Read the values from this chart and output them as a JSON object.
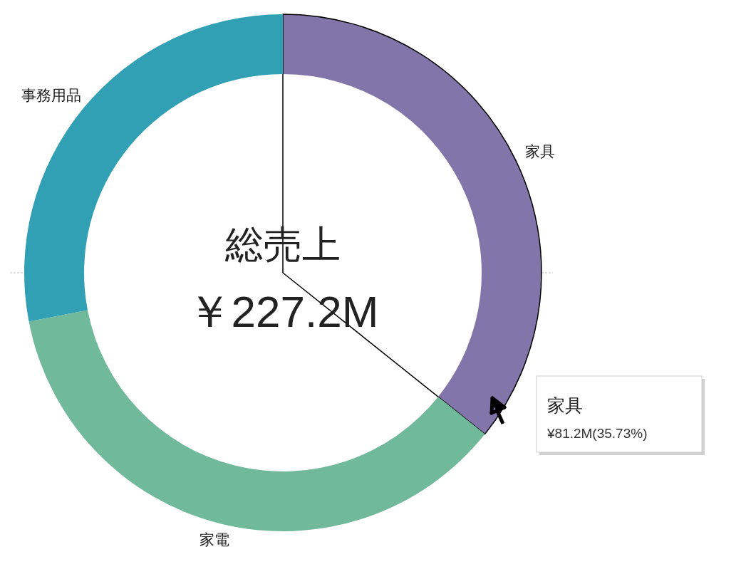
{
  "chart_data": {
    "type": "donut",
    "categories": [
      "家具",
      "家電",
      "事務用品"
    ],
    "values": [
      35.73,
      36.25,
      28.02
    ],
    "colors": [
      "#8275a9",
      "#71b99b",
      "#31a0b5"
    ],
    "annotations": [
      "総売上",
      "￥227.2M",
      "家具",
      "¥81.2M(35.73%)"
    ]
  }
}
